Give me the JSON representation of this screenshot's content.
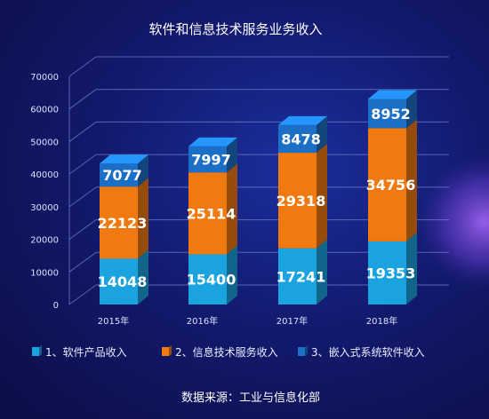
{
  "chart_data": {
    "type": "bar",
    "stacked": true,
    "three_d": true,
    "title": "软件和信息技术服务业务收入",
    "categories": [
      "2015年",
      "2016年",
      "2017年",
      "2018年"
    ],
    "series": [
      {
        "name": "1、软件产品收入",
        "values": [
          14048,
          15400,
          17241,
          19353
        ],
        "color": "#1ba3e0"
      },
      {
        "name": "2、信息技术服务收入",
        "values": [
          22123,
          25114,
          29318,
          34756
        ],
        "color": "#f07a10"
      },
      {
        "name": "3、嵌入式系统软件收入",
        "values": [
          7077,
          7997,
          8478,
          8952
        ],
        "color": "#1c6fc6"
      }
    ],
    "yticks": [
      "0",
      "10000",
      "20000",
      "30000",
      "40000",
      "50000",
      "60000",
      "70000"
    ],
    "ylim": [
      0,
      70000
    ],
    "grid": true,
    "legend_position": "bottom",
    "source": "数据来源：工业与信息化部"
  }
}
